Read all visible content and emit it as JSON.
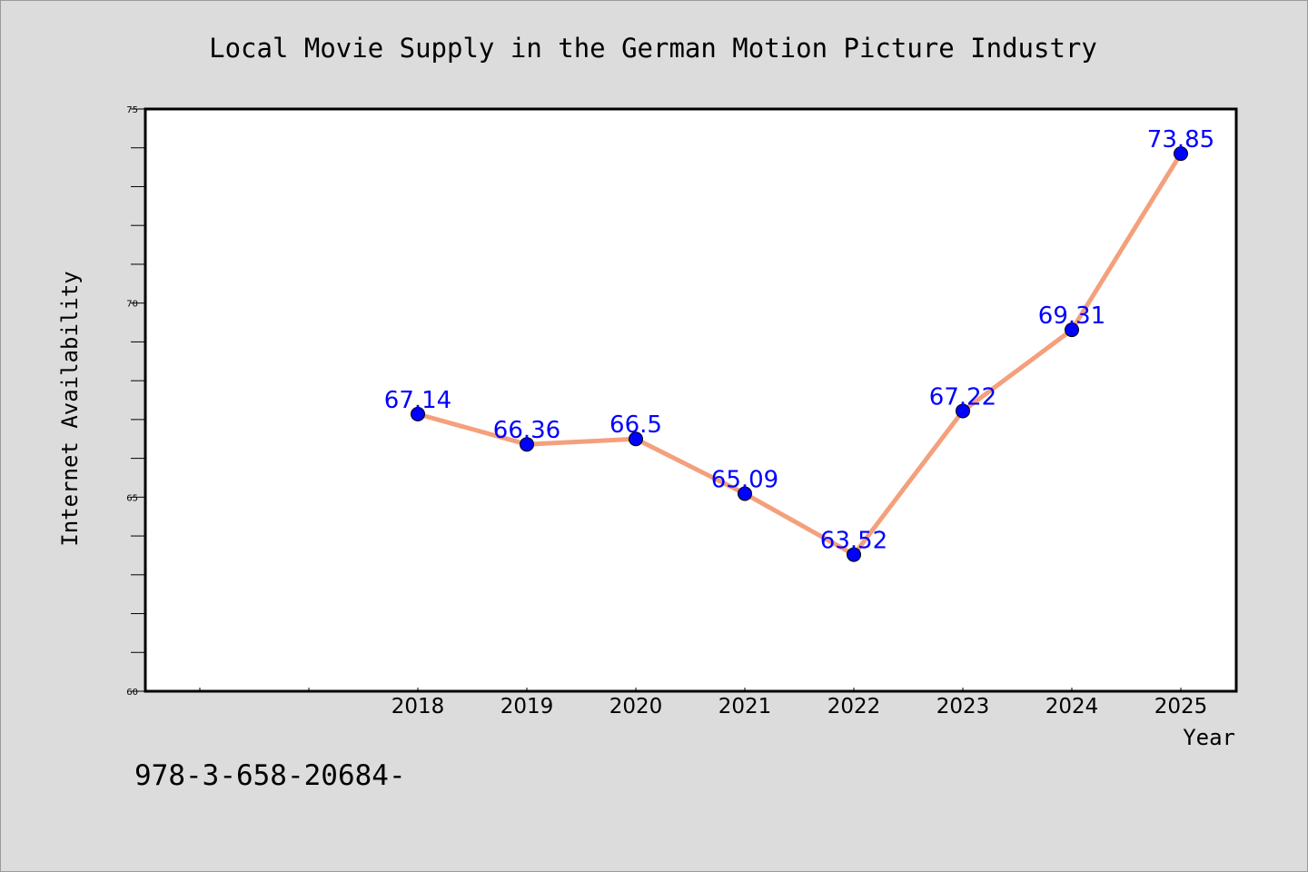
{
  "chart_data": {
    "type": "line",
    "title": "Local Movie Supply in the German Motion Picture Industry",
    "xlabel": "Year",
    "ylabel": "Internet Availability",
    "categories": [
      "2018",
      "2019",
      "2020",
      "2021",
      "2022",
      "2023",
      "2024",
      "2025"
    ],
    "series": [
      {
        "values": [
          67.14,
          66.36,
          66.5,
          65.09,
          63.52,
          67.22,
          69.31,
          73.85
        ],
        "labels": [
          "67.14",
          "66.36",
          "66.5",
          "65.09",
          "63.52",
          "67.22",
          "69.31",
          "73.85"
        ]
      }
    ],
    "ylim": [
      60,
      75
    ],
    "yticks": [
      "60",
      "65",
      "70",
      "75"
    ],
    "grid": false,
    "legend": "none",
    "colors": {
      "line": "#f4a07c",
      "marker": "#0000ff",
      "data_label": "#0000ff",
      "background": "#dcdcdc",
      "plot_background": "#ffffff"
    }
  },
  "annotation": "978-3-658-20684-"
}
